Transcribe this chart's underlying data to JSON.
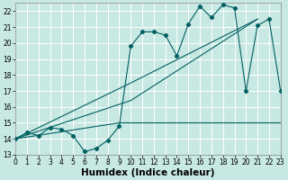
{
  "xlabel": "Humidex (Indice chaleur)",
  "bg_color": "#c8e8e4",
  "grid_color": "#b0d8d4",
  "line_color": "#006060",
  "series1_x": [
    0,
    1,
    2,
    3,
    4,
    5,
    6,
    7,
    8,
    9,
    10,
    11,
    12,
    13,
    14,
    15,
    16,
    17,
    18,
    19,
    20,
    21,
    22,
    23
  ],
  "series1_y": [
    14.0,
    14.4,
    14.2,
    14.7,
    14.6,
    14.2,
    13.2,
    13.4,
    13.9,
    14.8,
    19.8,
    20.7,
    20.7,
    20.5,
    19.2,
    21.2,
    22.3,
    21.6,
    22.4,
    22.2,
    17.0,
    21.1,
    21.5,
    17.0
  ],
  "series2_x": [
    0,
    10,
    21
  ],
  "series2_y": [
    14.0,
    17.5,
    21.5
  ],
  "series3_x": [
    0,
    10,
    21
  ],
  "series3_y": [
    14.0,
    16.4,
    21.5
  ],
  "series4_x": [
    0,
    9,
    21,
    23
  ],
  "series4_y": [
    14.0,
    15.0,
    15.0,
    15.0
  ],
  "xlim": [
    0,
    23
  ],
  "ylim": [
    13,
    22.5
  ],
  "xticks": [
    0,
    1,
    2,
    3,
    4,
    5,
    6,
    7,
    8,
    9,
    10,
    11,
    12,
    13,
    14,
    15,
    16,
    17,
    18,
    19,
    20,
    21,
    22,
    23
  ],
  "yticks": [
    13,
    14,
    15,
    16,
    17,
    18,
    19,
    20,
    21,
    22
  ],
  "tick_fontsize": 5.5,
  "xlabel_fontsize": 7.5
}
